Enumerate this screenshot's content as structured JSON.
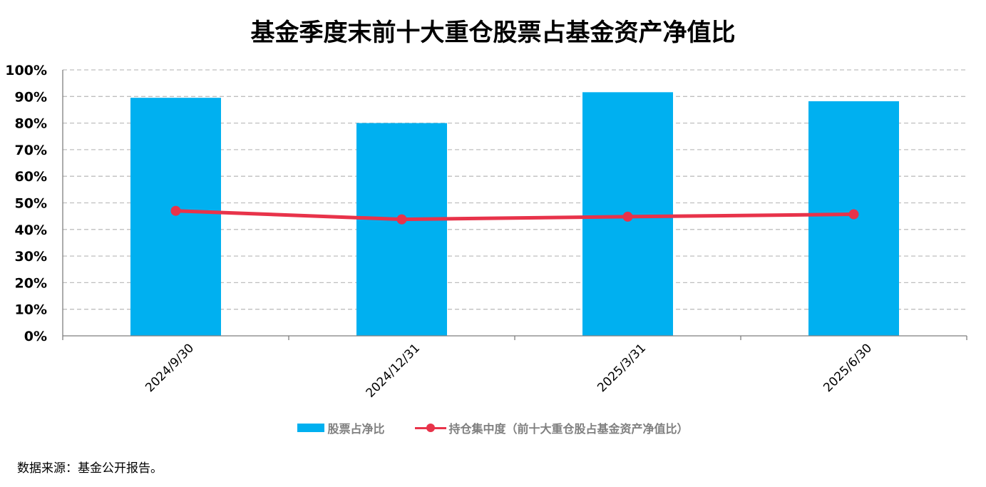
{
  "title": "基金季度末前十大重仓股票占基金资产净值比",
  "source": "数据来源：基金公开报告。",
  "colors": {
    "bar": "#00b0f0",
    "line": "#e8334a",
    "grid": "#bfbfbf",
    "axis": "#7f7f7f"
  },
  "chart_data": {
    "type": "bar",
    "categories": [
      "2024/9/30",
      "2024/12/31",
      "2025/3/31",
      "2025/6/30"
    ],
    "ylim": [
      0,
      100
    ],
    "yticks": [
      "0%",
      "10%",
      "20%",
      "30%",
      "40%",
      "50%",
      "60%",
      "70%",
      "80%",
      "90%",
      "100%"
    ],
    "grid": true,
    "legend_position": "bottom",
    "series": [
      {
        "name": "股票占净比",
        "type": "bar",
        "values": [
          89.5,
          80.0,
          91.6,
          88.2
        ]
      },
      {
        "name": "持仓集中度（前十大重仓股占基金资产净值比）",
        "type": "line",
        "values": [
          47.0,
          43.8,
          44.8,
          45.7
        ]
      }
    ]
  }
}
